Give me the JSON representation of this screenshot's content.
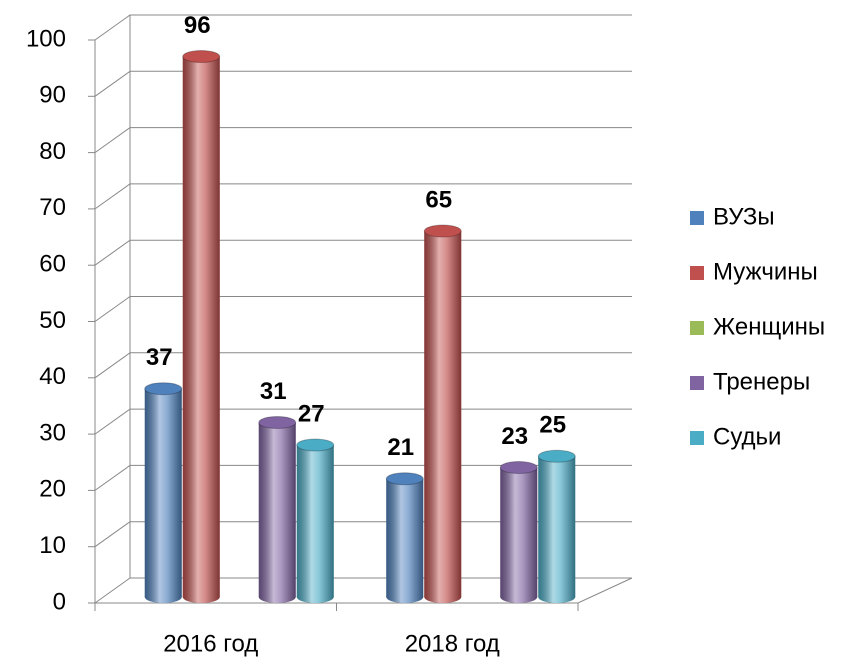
{
  "chart_data": {
    "type": "bar",
    "categories": [
      "2016 год",
      "2018 год"
    ],
    "series": [
      {
        "name": "ВУЗы",
        "color": "#4f81bd",
        "values": [
          37,
          21
        ]
      },
      {
        "name": "Мужчины",
        "color": "#c0504d",
        "values": [
          96,
          65
        ]
      },
      {
        "name": "Женщины",
        "color": "#9bbb59",
        "values": [
          null,
          null
        ]
      },
      {
        "name": "Тренеры",
        "color": "#8064a2",
        "values": [
          31,
          23
        ]
      },
      {
        "name": "Судьи",
        "color": "#4bacc6",
        "values": [
          27,
          25
        ]
      }
    ],
    "ylim": [
      0,
      100
    ],
    "yticks": [
      0,
      10,
      20,
      30,
      40,
      50,
      60,
      70,
      80,
      90,
      100
    ],
    "grid": true,
    "legend": "right"
  }
}
